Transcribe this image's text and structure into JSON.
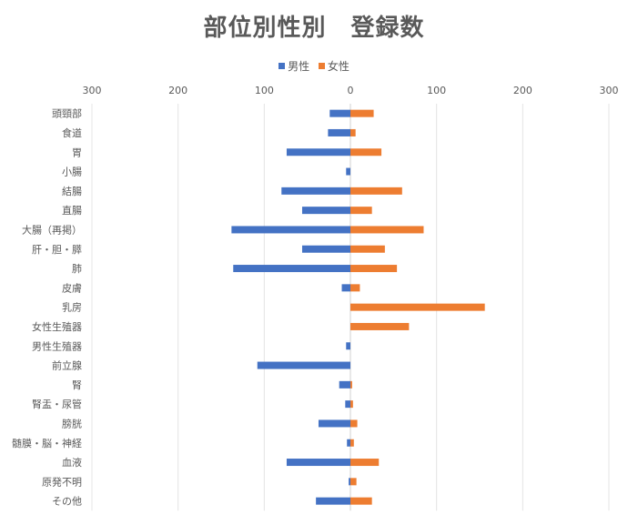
{
  "chart_data": {
    "type": "bar",
    "orientation": "horizontal-diverging",
    "title": "部位別性別　登録数",
    "xlim": [
      -300,
      300
    ],
    "x_ticks": [
      -300,
      -200,
      -100,
      0,
      100,
      200,
      300
    ],
    "x_tick_labels": [
      "300",
      "200",
      "100",
      "0",
      "100",
      "200",
      "300"
    ],
    "grid": true,
    "legend_position": "top",
    "categories": [
      "頭頸部",
      "食道",
      "胃",
      "小腸",
      "結腸",
      "直腸",
      "大腸（再掲）",
      "肝・胆・膵",
      "肺",
      "皮膚",
      "乳房",
      "女性生殖器",
      "男性生殖器",
      "前立腺",
      "腎",
      "腎盂・尿管",
      "膀胱",
      "髄膜・脳・神経",
      "血液",
      "原発不明",
      "その他"
    ],
    "series": [
      {
        "name": "男性",
        "color": "#4472C4",
        "values": [
          -24,
          -26,
          -74,
          -5,
          -80,
          -56,
          -138,
          -56,
          -136,
          -10,
          0,
          0,
          -5,
          -108,
          -13,
          -6,
          -37,
          -4,
          -74,
          -2,
          -40
        ]
      },
      {
        "name": "女性",
        "color": "#ED7D31",
        "values": [
          27,
          6,
          36,
          0,
          60,
          25,
          85,
          40,
          54,
          11,
          156,
          68,
          0,
          0,
          2,
          3,
          8,
          4,
          33,
          7,
          25
        ]
      }
    ]
  }
}
